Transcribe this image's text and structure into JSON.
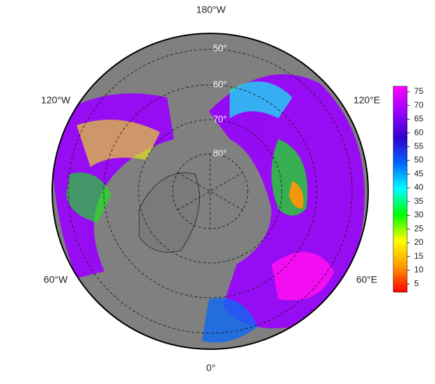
{
  "map": {
    "longitude_labels": [
      "180°W",
      "120°W",
      "120°E",
      "60°W",
      "60°E",
      "0°"
    ],
    "latitude_labels": [
      "50°",
      "60°",
      "70°",
      "80°"
    ],
    "colorbar": {
      "ticks": [
        5,
        10,
        15,
        20,
        25,
        30,
        35,
        40,
        45,
        50,
        55,
        60,
        65,
        70,
        75
      ],
      "range": [
        2,
        77
      ],
      "colors": [
        "#ff0000",
        "#ff9900",
        "#ffff00",
        "#00ff00",
        "#00ffff",
        "#0066ff",
        "#3300cc",
        "#9900ff",
        "#ff00ff"
      ]
    }
  }
}
